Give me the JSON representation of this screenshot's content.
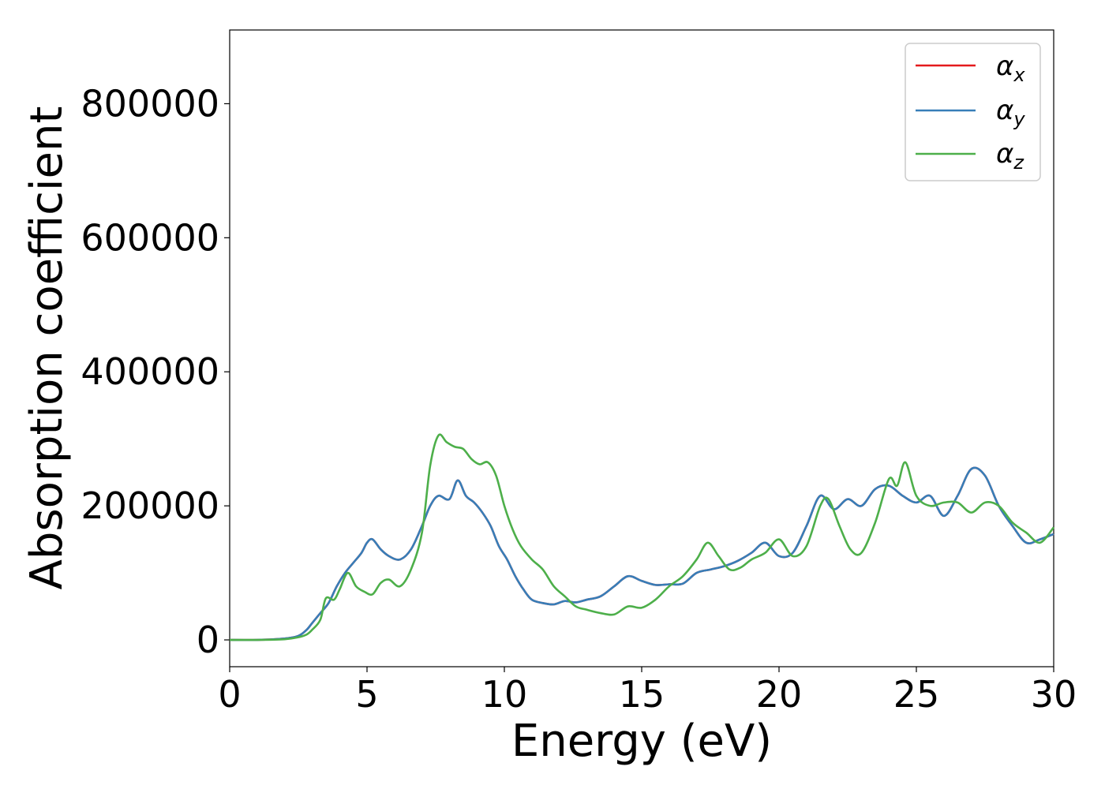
{
  "chart_data": {
    "type": "line",
    "xlabel": "Energy (eV)",
    "ylabel": "Absorption coefficient",
    "xlim": [
      0,
      30
    ],
    "ylim": [
      -40000,
      910000
    ],
    "xticks": [
      0,
      5,
      10,
      15,
      20,
      25,
      30
    ],
    "xtick_labels": [
      "0",
      "5",
      "10",
      "15",
      "20",
      "25",
      "30"
    ],
    "yticks": [
      0,
      200000,
      400000,
      600000,
      800000
    ],
    "ytick_labels": [
      "0",
      "200000",
      "400000",
      "600000",
      "800000"
    ],
    "grid": false,
    "legend_position": "top-right",
    "series": [
      {
        "name": "α",
        "subscript": "x",
        "color": "#e41a1c",
        "x": [
          0,
          1,
          2,
          2.5,
          2.8,
          3.0,
          3.3,
          3.6,
          3.9,
          4.2,
          4.5,
          4.8,
          5.0,
          5.2,
          5.5,
          5.8,
          6.2,
          6.6,
          7.0,
          7.3,
          7.6,
          8.0,
          8.3,
          8.6,
          8.9,
          9.2,
          9.5,
          9.8,
          10.1,
          10.4,
          10.7,
          11.0,
          11.4,
          11.8,
          12.2,
          12.6,
          13.0,
          13.5,
          14.0,
          14.5,
          15.0,
          15.5,
          16.0,
          16.5,
          17.0,
          17.5,
          18.0,
          18.5,
          19.0,
          19.5,
          20.0,
          20.5,
          21.0,
          21.5,
          22.0,
          22.5,
          23.0,
          23.5,
          24.0,
          24.5,
          25.0,
          25.5,
          26.0,
          26.5,
          27.0,
          27.5,
          28.0,
          28.5,
          29.0,
          29.5,
          30.0
        ],
        "values": [
          0,
          0,
          2000,
          6000,
          15000,
          25000,
          40000,
          55000,
          80000,
          100000,
          115000,
          130000,
          145000,
          150000,
          135000,
          125000,
          120000,
          135000,
          170000,
          200000,
          215000,
          210000,
          238000,
          215000,
          205000,
          190000,
          170000,
          140000,
          120000,
          95000,
          75000,
          60000,
          55000,
          53000,
          58000,
          56000,
          60000,
          65000,
          80000,
          95000,
          88000,
          82000,
          83000,
          84000,
          100000,
          105000,
          110000,
          118000,
          130000,
          145000,
          125000,
          130000,
          170000,
          215000,
          195000,
          210000,
          200000,
          225000,
          230000,
          215000,
          205000,
          215000,
          185000,
          215000,
          255000,
          245000,
          200000,
          170000,
          145000,
          150000,
          158000
        ]
      },
      {
        "name": "α",
        "subscript": "y",
        "color": "#377eb8",
        "x": [
          0,
          1,
          2,
          2.5,
          2.8,
          3.0,
          3.3,
          3.6,
          3.9,
          4.2,
          4.5,
          4.8,
          5.0,
          5.2,
          5.5,
          5.8,
          6.2,
          6.6,
          7.0,
          7.3,
          7.6,
          8.0,
          8.3,
          8.6,
          8.9,
          9.2,
          9.5,
          9.8,
          10.1,
          10.4,
          10.7,
          11.0,
          11.4,
          11.8,
          12.2,
          12.6,
          13.0,
          13.5,
          14.0,
          14.5,
          15.0,
          15.5,
          16.0,
          16.5,
          17.0,
          17.5,
          18.0,
          18.5,
          19.0,
          19.5,
          20.0,
          20.5,
          21.0,
          21.5,
          22.0,
          22.5,
          23.0,
          23.5,
          24.0,
          24.5,
          25.0,
          25.5,
          26.0,
          26.5,
          27.0,
          27.5,
          28.0,
          28.5,
          29.0,
          29.5,
          30.0
        ],
        "values": [
          0,
          0,
          2000,
          6000,
          15000,
          25000,
          40000,
          55000,
          80000,
          100000,
          115000,
          130000,
          145000,
          150000,
          135000,
          125000,
          120000,
          135000,
          170000,
          200000,
          215000,
          210000,
          238000,
          215000,
          205000,
          190000,
          170000,
          140000,
          120000,
          95000,
          75000,
          60000,
          55000,
          53000,
          58000,
          56000,
          60000,
          65000,
          80000,
          95000,
          88000,
          82000,
          83000,
          84000,
          100000,
          105000,
          110000,
          118000,
          130000,
          145000,
          125000,
          130000,
          170000,
          215000,
          195000,
          210000,
          200000,
          225000,
          230000,
          215000,
          205000,
          215000,
          185000,
          215000,
          255000,
          245000,
          200000,
          170000,
          145000,
          150000,
          158000
        ]
      },
      {
        "name": "α",
        "subscript": "z",
        "color": "#4daf4a",
        "x": [
          0,
          1,
          2,
          2.5,
          2.8,
          3.0,
          3.3,
          3.5,
          3.8,
          4.0,
          4.3,
          4.6,
          4.9,
          5.2,
          5.5,
          5.8,
          6.2,
          6.6,
          7.0,
          7.3,
          7.6,
          7.9,
          8.2,
          8.5,
          8.8,
          9.1,
          9.4,
          9.7,
          10.0,
          10.3,
          10.6,
          11.0,
          11.4,
          11.8,
          12.2,
          12.6,
          13.0,
          13.5,
          14.0,
          14.5,
          15.0,
          15.5,
          16.0,
          16.5,
          17.0,
          17.4,
          17.8,
          18.2,
          18.6,
          19.0,
          19.5,
          20.0,
          20.5,
          21.0,
          21.5,
          21.8,
          22.2,
          22.6,
          23.0,
          23.5,
          24.0,
          24.3,
          24.6,
          25.0,
          25.5,
          26.0,
          26.5,
          27.0,
          27.5,
          28.0,
          28.5,
          29.0,
          29.5,
          30.0
        ],
        "values": [
          0,
          0,
          1000,
          4000,
          8000,
          15000,
          30000,
          62000,
          60000,
          75000,
          100000,
          80000,
          72000,
          68000,
          85000,
          90000,
          80000,
          105000,
          160000,
          260000,
          305000,
          295000,
          288000,
          285000,
          270000,
          262000,
          265000,
          245000,
          200000,
          165000,
          140000,
          120000,
          105000,
          80000,
          65000,
          50000,
          45000,
          40000,
          38000,
          50000,
          48000,
          60000,
          80000,
          95000,
          120000,
          145000,
          125000,
          105000,
          108000,
          120000,
          130000,
          150000,
          125000,
          140000,
          200000,
          210000,
          170000,
          135000,
          130000,
          175000,
          240000,
          230000,
          265000,
          215000,
          200000,
          205000,
          205000,
          190000,
          205000,
          200000,
          175000,
          160000,
          145000,
          168000
        ]
      }
    ]
  }
}
